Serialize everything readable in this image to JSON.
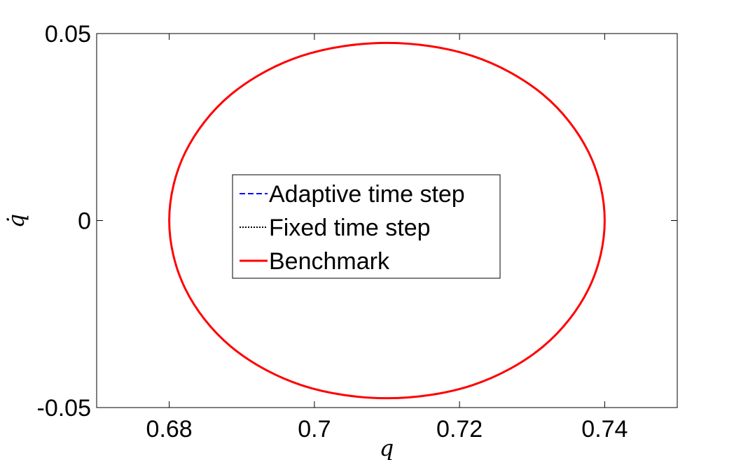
{
  "chart_data": {
    "type": "line",
    "title": "",
    "xlabel": "q",
    "ylabel": "q̇",
    "xlim": [
      0.67,
      0.75
    ],
    "ylim": [
      -0.05,
      0.05
    ],
    "xticks": [
      0.68,
      0.7,
      0.72,
      0.74
    ],
    "xtick_labels": [
      "0.68",
      "0.7",
      "0.72",
      "0.74"
    ],
    "yticks": [
      -0.05,
      0,
      0.05
    ],
    "ytick_labels": [
      "-0.05",
      "0",
      "0.05"
    ],
    "grid": false,
    "legend_position": "center",
    "series": [
      {
        "name": "Adaptive time step",
        "color": "#0000ff",
        "style": "dashed",
        "x": [
          0.74,
          0.7378,
          0.7315,
          0.7218,
          0.71,
          0.6982,
          0.6885,
          0.6822,
          0.68,
          0.6822,
          0.6885,
          0.6982,
          0.71,
          0.7218,
          0.7315,
          0.7378,
          0.74
        ],
        "y": [
          0.0,
          0.0182,
          0.0337,
          0.044,
          0.0475,
          0.044,
          0.0337,
          0.0182,
          0.0,
          -0.0182,
          -0.0337,
          -0.044,
          -0.0475,
          -0.044,
          -0.0337,
          -0.0182,
          0.0
        ]
      },
      {
        "name": "Fixed time step",
        "color": "#000000",
        "style": "dotted",
        "x": [
          0.74,
          0.7378,
          0.7315,
          0.7218,
          0.71,
          0.6982,
          0.6885,
          0.6822,
          0.68,
          0.6822,
          0.6885,
          0.6982,
          0.71,
          0.7218,
          0.7315,
          0.7378,
          0.74
        ],
        "y": [
          0.0,
          0.0182,
          0.0337,
          0.044,
          0.0475,
          0.044,
          0.0337,
          0.0182,
          0.0,
          -0.0182,
          -0.0337,
          -0.044,
          -0.0475,
          -0.044,
          -0.0337,
          -0.0182,
          0.0
        ]
      },
      {
        "name": "Benchmark",
        "color": "#ff0000",
        "style": "solid",
        "x": [
          0.74,
          0.7378,
          0.7315,
          0.7218,
          0.71,
          0.6982,
          0.6885,
          0.6822,
          0.68,
          0.6822,
          0.6885,
          0.6982,
          0.71,
          0.7218,
          0.7315,
          0.7378,
          0.74
        ],
        "y": [
          0.0,
          0.0182,
          0.0337,
          0.044,
          0.0475,
          0.044,
          0.0337,
          0.0182,
          0.0,
          -0.0182,
          -0.0337,
          -0.044,
          -0.0475,
          -0.044,
          -0.0337,
          -0.0182,
          0.0
        ]
      }
    ]
  }
}
